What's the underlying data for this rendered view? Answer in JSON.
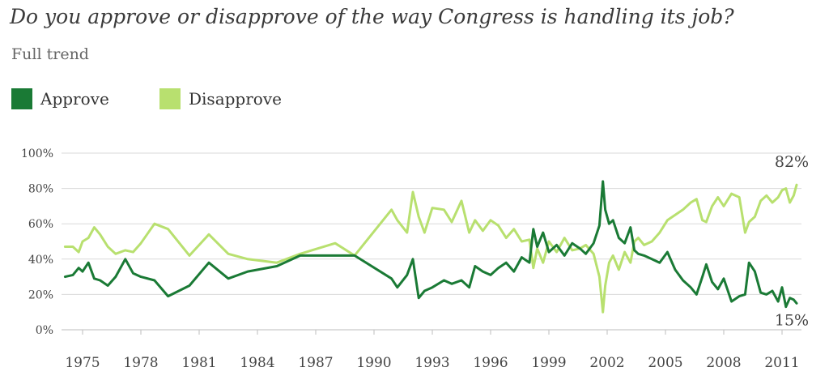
{
  "chart_data": {
    "type": "line",
    "title": "Do you approve or disapprove of the way Congress is handling its job?",
    "subtitle": "Full trend",
    "ylim": [
      0,
      100
    ],
    "xlim": [
      1974,
      2012
    ],
    "y_ticks": [
      "0%",
      "20%",
      "40%",
      "60%",
      "80%",
      "100%"
    ],
    "y_tick_values": [
      0,
      20,
      40,
      60,
      80,
      100
    ],
    "x_ticks": [
      "1975",
      "1978",
      "1981",
      "1984",
      "1987",
      "1990",
      "1993",
      "1996",
      "1999",
      "2002",
      "2005",
      "2008",
      "2011"
    ],
    "x_tick_values": [
      1975,
      1978,
      1981,
      1984,
      1987,
      1990,
      1993,
      1996,
      1999,
      2002,
      2005,
      2008,
      2011
    ],
    "grid": true,
    "legend_position": "top-left",
    "series": [
      {
        "name": "Approve",
        "color": "#1a7a35",
        "end_label": "15%",
        "x": [
          1974.1,
          1974.5,
          1974.8,
          1975.0,
          1975.3,
          1975.6,
          1975.9,
          1976.3,
          1976.7,
          1977.2,
          1977.6,
          1978.0,
          1978.7,
          1979.4,
          1980.5,
          1981.5,
          1982.5,
          1983.5,
          1985.0,
          1986.2,
          1988.0,
          1989.0,
          1990.9,
          1991.2,
          1991.7,
          1992.0,
          1992.3,
          1992.6,
          1993.0,
          1993.6,
          1994.0,
          1994.5,
          1994.9,
          1995.2,
          1995.6,
          1996.0,
          1996.4,
          1996.8,
          1997.2,
          1997.6,
          1998.0,
          1998.2,
          1998.4,
          1998.7,
          1999.0,
          1999.4,
          1999.8,
          2000.2,
          2000.6,
          2000.9,
          2001.3,
          2001.6,
          2001.78,
          2001.9,
          2002.1,
          2002.3,
          2002.6,
          2002.9,
          2003.2,
          2003.4,
          2003.6,
          2003.9,
          2004.3,
          2004.7,
          2005.1,
          2005.5,
          2005.9,
          2006.3,
          2006.6,
          2006.9,
          2007.1,
          2007.4,
          2007.7,
          2008.0,
          2008.4,
          2008.8,
          2009.1,
          2009.3,
          2009.6,
          2009.9,
          2010.2,
          2010.5,
          2010.8,
          2011.0,
          2011.2,
          2011.4,
          2011.6,
          2011.75
        ],
        "values": [
          30,
          31,
          35,
          33,
          38,
          29,
          28,
          25,
          30,
          40,
          32,
          30,
          28,
          19,
          25,
          38,
          29,
          33,
          36,
          42,
          42,
          42,
          29,
          24,
          31,
          40,
          18,
          22,
          24,
          28,
          26,
          28,
          24,
          36,
          33,
          31,
          35,
          38,
          33,
          41,
          38,
          57,
          47,
          55,
          44,
          48,
          42,
          49,
          46,
          43,
          49,
          59,
          84,
          68,
          60,
          62,
          52,
          49,
          58,
          45,
          43,
          42,
          40,
          38,
          44,
          34,
          28,
          24,
          20,
          30,
          37,
          27,
          23,
          29,
          16,
          19,
          20,
          38,
          33,
          21,
          20,
          22,
          16,
          24,
          13,
          18,
          17,
          15
        ]
      },
      {
        "name": "Disapprove",
        "color": "#b8e06f",
        "end_label": "82%",
        "x": [
          1974.1,
          1974.5,
          1974.8,
          1975.0,
          1975.3,
          1975.6,
          1975.9,
          1976.3,
          1976.7,
          1977.2,
          1977.6,
          1978.0,
          1978.7,
          1979.4,
          1980.5,
          1981.5,
          1982.5,
          1983.5,
          1985.0,
          1986.2,
          1988.0,
          1989.0,
          1990.9,
          1991.2,
          1991.7,
          1992.0,
          1992.3,
          1992.6,
          1993.0,
          1993.6,
          1994.0,
          1994.5,
          1994.9,
          1995.2,
          1995.6,
          1996.0,
          1996.4,
          1996.8,
          1997.2,
          1997.6,
          1998.0,
          1998.2,
          1998.4,
          1998.7,
          1999.0,
          1999.4,
          1999.8,
          2000.2,
          2000.6,
          2000.9,
          2001.3,
          2001.6,
          2001.78,
          2001.9,
          2002.1,
          2002.3,
          2002.6,
          2002.9,
          2003.2,
          2003.4,
          2003.6,
          2003.9,
          2004.3,
          2004.7,
          2005.1,
          2005.5,
          2005.9,
          2006.3,
          2006.6,
          2006.9,
          2007.1,
          2007.4,
          2007.7,
          2008.0,
          2008.4,
          2008.8,
          2009.1,
          2009.3,
          2009.6,
          2009.9,
          2010.2,
          2010.5,
          2010.8,
          2011.0,
          2011.2,
          2011.4,
          2011.6,
          2011.75
        ],
        "values": [
          47,
          47,
          44,
          50,
          52,
          58,
          54,
          47,
          43,
          45,
          44,
          49,
          60,
          57,
          42,
          54,
          43,
          40,
          38,
          43,
          49,
          42,
          68,
          62,
          55,
          78,
          64,
          55,
          69,
          68,
          61,
          73,
          55,
          62,
          56,
          62,
          59,
          52,
          57,
          50,
          51,
          35,
          46,
          38,
          50,
          44,
          52,
          45,
          46,
          48,
          43,
          30,
          10,
          25,
          38,
          42,
          34,
          44,
          38,
          50,
          52,
          48,
          50,
          55,
          62,
          65,
          68,
          72,
          74,
          62,
          61,
          70,
          75,
          70,
          77,
          75,
          55,
          61,
          64,
          73,
          76,
          72,
          75,
          79,
          80,
          72,
          76,
          82
        ]
      }
    ]
  }
}
